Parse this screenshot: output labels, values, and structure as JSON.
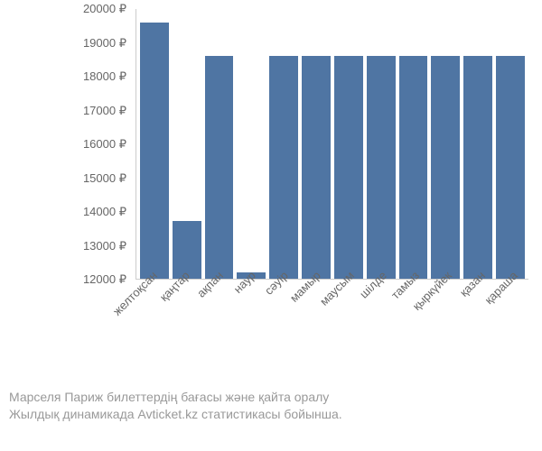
{
  "chart": {
    "type": "bar",
    "categories": [
      "желтоқсан",
      "қаңтар",
      "ақпан",
      "наур",
      "сәуір",
      "мамыр",
      "маусым",
      "шілде",
      "тамыз",
      "қыркүйек",
      "қазан",
      "қараша"
    ],
    "values": [
      19600,
      13700,
      18600,
      12200,
      18600,
      18600,
      18600,
      18600,
      18600,
      18600,
      18600,
      18600
    ],
    "bar_color": "#4f75a3",
    "ylim": [
      12000,
      20000
    ],
    "ytick_step": 1000,
    "currency_symbol": "₽",
    "ytick_labels": [
      "12000 ₽",
      "13000 ₽",
      "14000 ₽",
      "15000 ₽",
      "16000 ₽",
      "17000 ₽",
      "18000 ₽",
      "19000 ₽",
      "20000 ₽"
    ],
    "ytick_values": [
      12000,
      13000,
      14000,
      15000,
      16000,
      17000,
      18000,
      19000,
      20000
    ],
    "background_color": "#ffffff",
    "axis_color": "#cccccc",
    "label_color": "#666666"
  },
  "caption": {
    "line1": "Марселя Париж билеттердің бағасы және қайта оралу",
    "line2": "Жылдық динамикада Avticket.kz статистикасы бойынша."
  }
}
